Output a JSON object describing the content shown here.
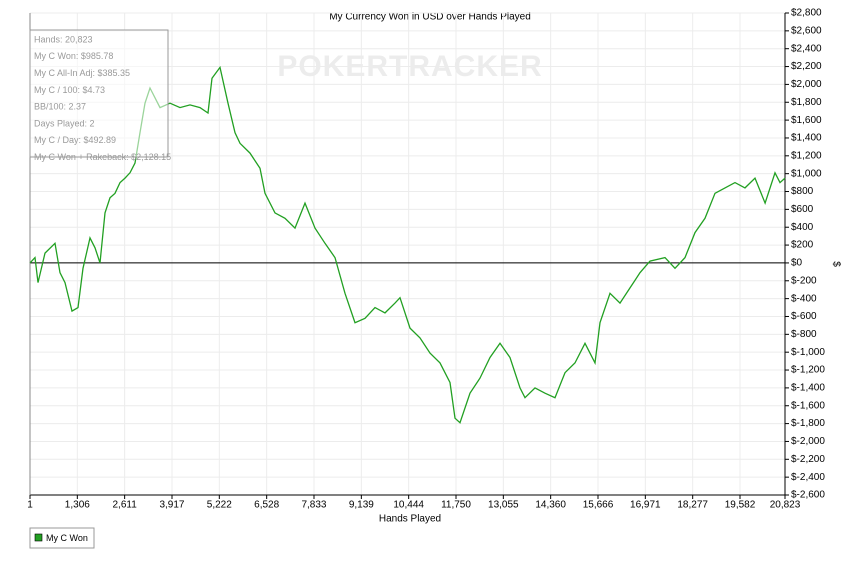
{
  "chart_data": {
    "type": "line",
    "title": "My Currency Won in USD over Hands Played",
    "x_label": "Hands Played",
    "y_label": "$",
    "watermark": "POKERTRACKER",
    "annotations": [
      "Hands: 20,823",
      "My C Won: $985.78",
      "My C All-In Adj: $385.35",
      "My C / 100: $4.73",
      "BB/100: 2.37",
      "Days Played: 2",
      "My C / Day: $492.89",
      "My C Won + Rakeback: $2,128.15"
    ],
    "x": [
      1,
      139,
      222,
      415,
      690,
      828,
      966,
      1159,
      1325,
      1463,
      1656,
      1794,
      1932,
      2070,
      2207,
      2345,
      2483,
      2621,
      2759,
      2897,
      3035,
      3173,
      3310,
      3586,
      3862,
      4138,
      4414,
      4690,
      4910,
      5020,
      5241,
      5462,
      5655,
      5793,
      6068,
      6344,
      6482,
      6758,
      7034,
      7310,
      7585,
      7861,
      8137,
      8413,
      8689,
      8964,
      9240,
      9516,
      9792,
      10068,
      10206,
      10481,
      10757,
      11033,
      11309,
      11585,
      11723,
      11860,
      12136,
      12412,
      12688,
      12963,
      13239,
      13515,
      13653,
      13929,
      14205,
      14480,
      14756,
      15032,
      15308,
      15584,
      15722,
      15997,
      16273,
      16549,
      16825,
      17101,
      17514,
      17790,
      18066,
      18342,
      18618,
      18893,
      19169,
      19445,
      19721,
      19997,
      20273,
      20548,
      20686,
      20823
    ],
    "series": [
      {
        "name": "My C Won",
        "color": "#22a022",
        "values": [
          0,
          60,
          -220,
          110,
          220,
          -110,
          -220,
          -540,
          -500,
          -60,
          280,
          170,
          0,
          560,
          730,
          780,
          900,
          950,
          1010,
          1120,
          1460,
          1790,
          1960,
          1740,
          1790,
          1740,
          1770,
          1740,
          1680,
          2070,
          2190,
          1790,
          1460,
          1340,
          1230,
          1060,
          780,
          560,
          500,
          390,
          670,
          390,
          220,
          60,
          -340,
          -670,
          -620,
          -500,
          -560,
          -450,
          -390,
          -730,
          -840,
          -1010,
          -1120,
          -1340,
          -1740,
          -1790,
          -1460,
          -1290,
          -1060,
          -900,
          -1060,
          -1400,
          -1510,
          -1400,
          -1460,
          -1510,
          -1230,
          -1120,
          -900,
          -1120,
          -670,
          -340,
          -450,
          -280,
          -110,
          20,
          60,
          -60,
          60,
          340,
          500,
          780,
          840,
          900,
          840,
          950,
          670,
          1010,
          900,
          950
        ]
      }
    ],
    "xlim": [
      1,
      20823
    ],
    "xticks": [
      1,
      {
        "value": 1306,
        "label": "1,306"
      },
      {
        "value": 2611,
        "label": "2,611"
      },
      {
        "value": 3917,
        "label": "3,917"
      },
      {
        "value": 5222,
        "label": "5,222"
      },
      {
        "value": 6528,
        "label": "6,528"
      },
      {
        "value": 7833,
        "label": "7,833"
      },
      {
        "value": 9139,
        "label": "9,139"
      },
      {
        "value": 10444,
        "label": "10,444"
      },
      {
        "value": 11750,
        "label": "11,750"
      },
      {
        "value": 13055,
        "label": "13,055"
      },
      {
        "value": 14360,
        "label": "14,360"
      },
      {
        "value": 15666,
        "label": "15,666"
      },
      {
        "value": 16971,
        "label": "16,971"
      },
      {
        "value": 18277,
        "label": "18,277"
      },
      {
        "value": 19582,
        "label": "19,582"
      },
      {
        "value": 20823,
        "label": "20,823"
      }
    ],
    "ylim": [
      -2600,
      2800
    ],
    "yticks": [
      {
        "value": -2600,
        "label": "$-2,600"
      },
      {
        "value": -2400,
        "label": "$-2,400"
      },
      {
        "value": -2200,
        "label": "$-2,200"
      },
      {
        "value": -2000,
        "label": "$-2,000"
      },
      {
        "value": -1800,
        "label": "$-1,800"
      },
      {
        "value": -1600,
        "label": "$-1,600"
      },
      {
        "value": -1400,
        "label": "$-1,400"
      },
      {
        "value": -1200,
        "label": "$-1,200"
      },
      {
        "value": -1000,
        "label": "$-1,000"
      },
      {
        "value": -800,
        "label": "$-800"
      },
      {
        "value": -600,
        "label": "$-600"
      },
      {
        "value": -400,
        "label": "$-400"
      },
      {
        "value": -200,
        "label": "$-200"
      },
      {
        "value": 0,
        "label": "$0"
      },
      {
        "value": 200,
        "label": "$200"
      },
      {
        "value": 400,
        "label": "$400"
      },
      {
        "value": 600,
        "label": "$600"
      },
      {
        "value": 800,
        "label": "$800"
      },
      {
        "value": 1000,
        "label": "$1,000"
      },
      {
        "value": 1200,
        "label": "$1,200"
      },
      {
        "value": 1400,
        "label": "$1,400"
      },
      {
        "value": 1600,
        "label": "$1,600"
      },
      {
        "value": 1800,
        "label": "$1,800"
      },
      {
        "value": 2000,
        "label": "$2,000"
      },
      {
        "value": 2200,
        "label": "$2,200"
      },
      {
        "value": 2400,
        "label": "$2,400"
      },
      {
        "value": 2600,
        "label": "$2,600"
      },
      {
        "value": 2800,
        "label": "$2,800"
      }
    ],
    "grid": true,
    "legend": "bottom-left"
  }
}
